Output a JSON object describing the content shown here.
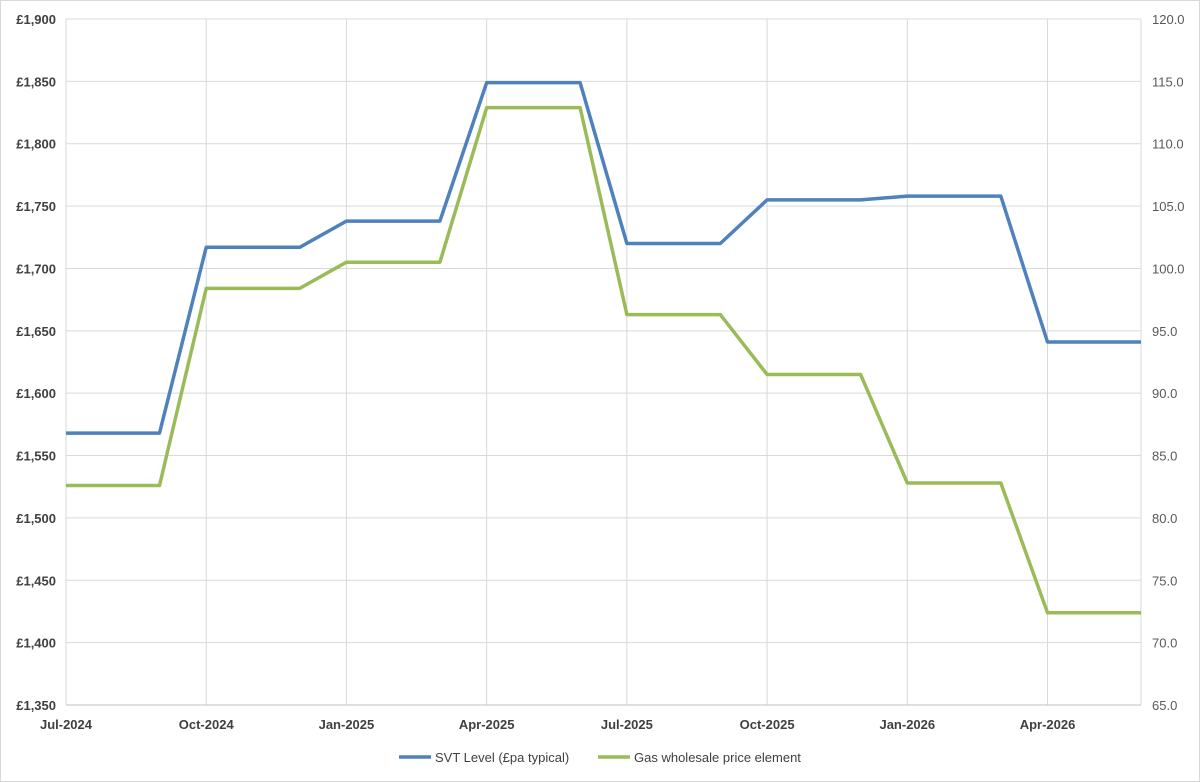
{
  "chart_data": {
    "type": "line",
    "title": "",
    "xlabel": "",
    "ylabel": "",
    "y2label": "",
    "grid": true,
    "legend_position": "bottom",
    "x": [
      "Jul-2024",
      "Aug-2024",
      "Sep-2024",
      "Oct-2024",
      "Nov-2024",
      "Dec-2024",
      "Jan-2025",
      "Feb-2025",
      "Mar-2025",
      "Apr-2025",
      "May-2025",
      "Jun-2025",
      "Jul-2025",
      "Aug-2025",
      "Sep-2025",
      "Oct-2025",
      "Nov-2025",
      "Dec-2025",
      "Jan-2026",
      "Feb-2026",
      "Mar-2026",
      "Apr-2026",
      "May-2026",
      "Jun-2026"
    ],
    "x_tick_labels": [
      "Jul-2024",
      "Oct-2024",
      "Jan-2025",
      "Apr-2025",
      "Jul-2025",
      "Oct-2025",
      "Jan-2026",
      "Apr-2026"
    ],
    "ylim": [
      1350,
      1900
    ],
    "y_ticks": [
      "£1,350",
      "£1,400",
      "£1,450",
      "£1,500",
      "£1,550",
      "£1,600",
      "£1,650",
      "£1,700",
      "£1,750",
      "£1,800",
      "£1,850",
      "£1,900"
    ],
    "y2lim": [
      65,
      120
    ],
    "y2_ticks": [
      "65.0",
      "70.0",
      "75.0",
      "80.0",
      "85.0",
      "90.0",
      "95.0",
      "100.0",
      "105.0",
      "110.0",
      "115.0",
      "120.0"
    ],
    "series": [
      {
        "name": "SVT Level (£pa typical)",
        "axis": "left",
        "color": "#4f81bd",
        "values": [
          1568,
          1568,
          1568,
          1717,
          1717,
          1717,
          1738,
          1738,
          1738,
          1849,
          1849,
          1849,
          1720,
          1720,
          1720,
          1755,
          1755,
          1755,
          1758,
          1758,
          1758,
          1641,
          1641,
          1641
        ]
      },
      {
        "name": "Gas wholesale price element",
        "axis": "right",
        "color": "#9bbb59",
        "values": [
          82.6,
          82.6,
          82.6,
          98.4,
          98.4,
          98.4,
          100.5,
          100.5,
          100.5,
          112.9,
          112.9,
          112.9,
          96.3,
          96.3,
          96.3,
          91.5,
          91.5,
          91.5,
          82.8,
          82.8,
          82.8,
          72.4,
          72.4,
          72.4
        ]
      }
    ]
  }
}
